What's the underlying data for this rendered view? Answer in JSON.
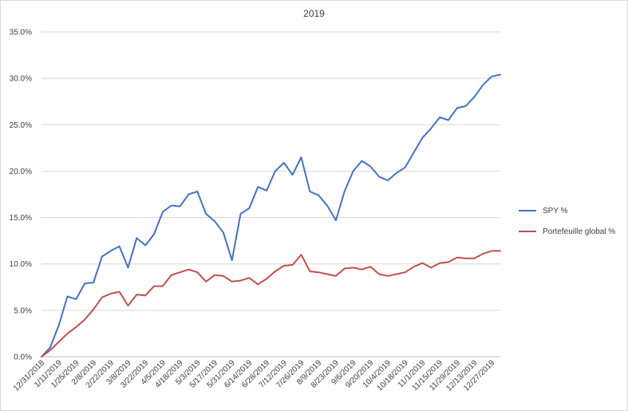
{
  "chart_data": {
    "type": "line",
    "title": "2019",
    "xlabel": "",
    "ylabel": "",
    "ylim": [
      0,
      35
    ],
    "y_ticks": [
      0,
      5,
      10,
      15,
      20,
      25,
      30,
      35
    ],
    "y_tick_labels": [
      "0.0%",
      "5.0%",
      "10.0%",
      "15.0%",
      "20.0%",
      "25.0%",
      "30.0%",
      "35.0%"
    ],
    "grid": true,
    "legend_position": "right",
    "x_tick_labels": [
      "12/31/2018",
      "1/11/2019",
      "1/25/2019",
      "2/8/2019",
      "2/22/2019",
      "3/8/2019",
      "3/22/2019",
      "4/5/2019",
      "4/18/2019",
      "5/3/2019",
      "5/17/2019",
      "5/31/2019",
      "6/14/2019",
      "6/28/2019",
      "7/12/2019",
      "7/26/2019",
      "8/9/2019",
      "8/23/2019",
      "9/6/2019",
      "9/20/2019",
      "10/4/2019",
      "10/18/2019",
      "11/1/2019",
      "11/15/2019",
      "11/29/2019",
      "12/13/2019",
      "12/27/2019"
    ],
    "series": [
      {
        "name": "SPY %",
        "color": "#4472c4",
        "values": [
          0,
          1.0,
          3.4,
          6.5,
          6.2,
          7.9,
          8.0,
          10.8,
          11.4,
          11.9,
          9.6,
          12.8,
          12.0,
          13.2,
          15.6,
          16.3,
          16.2,
          17.5,
          17.8,
          15.4,
          14.6,
          13.4,
          10.4,
          15.4,
          16.0,
          18.3,
          17.9,
          20.0,
          20.9,
          19.6,
          21.5,
          17.8,
          17.4,
          16.3,
          14.7,
          17.8,
          20.0,
          21.1,
          20.5,
          19.4,
          19.0,
          19.8,
          20.4,
          22.0,
          23.6,
          24.6,
          25.8,
          25.5,
          26.8,
          27.0,
          28.0,
          29.3,
          30.2,
          30.4
        ]
      },
      {
        "name": "Portefeuille global %",
        "color": "#c0504d",
        "values": [
          0,
          0.7,
          1.6,
          2.5,
          3.2,
          4.0,
          5.1,
          6.4,
          6.8,
          7.0,
          5.5,
          6.7,
          6.6,
          7.6,
          7.6,
          8.8,
          9.1,
          9.4,
          9.1,
          8.1,
          8.8,
          8.7,
          8.1,
          8.2,
          8.5,
          7.8,
          8.4,
          9.2,
          9.8,
          9.9,
          11.0,
          9.2,
          9.1,
          8.9,
          8.7,
          9.5,
          9.6,
          9.4,
          9.7,
          8.9,
          8.7,
          8.9,
          9.1,
          9.7,
          10.1,
          9.6,
          10.1,
          10.2,
          10.7,
          10.6,
          10.6,
          11.1,
          11.4,
          11.4
        ]
      }
    ]
  }
}
